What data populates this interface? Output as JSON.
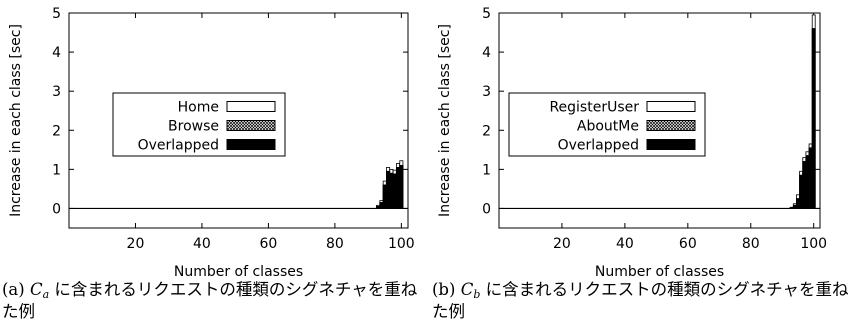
{
  "chart_data": [
    {
      "type": "bar",
      "xlabel": "Number of classes",
      "ylabel": "Increase in each class [sec]",
      "xlim": [
        0,
        102
      ],
      "ylim": [
        -0.5,
        5
      ],
      "xticks": [
        20,
        40,
        60,
        80,
        100
      ],
      "yticks": [
        0,
        1,
        2,
        3,
        4,
        5
      ],
      "legend_position": "center-left",
      "x": [
        93,
        94,
        95,
        96,
        97,
        98,
        99,
        100
      ],
      "series": [
        {
          "name": "Home",
          "style": "open",
          "values": [
            0.08,
            0.2,
            0.7,
            1.05,
            1.0,
            0.98,
            1.15,
            1.22
          ]
        },
        {
          "name": "Browse",
          "style": "crosshatch",
          "values": [
            0.05,
            0.15,
            0.6,
            0.95,
            0.9,
            0.88,
            1.05,
            1.1
          ]
        },
        {
          "name": "Overlapped",
          "style": "solid",
          "values": [
            0.05,
            0.15,
            0.6,
            0.95,
            0.9,
            0.88,
            1.05,
            1.1
          ]
        }
      ],
      "caption": {
        "label": "(a)",
        "symbol": "C",
        "subscript": "a",
        "text": "に含まれるリクエストの種類のシグネチャを重ねた例"
      }
    },
    {
      "type": "bar",
      "xlabel": "Number of classes",
      "ylabel": "Increase in each class [sec]",
      "xlim": [
        0,
        102
      ],
      "ylim": [
        -0.5,
        5
      ],
      "xticks": [
        20,
        40,
        60,
        80,
        100
      ],
      "yticks": [
        0,
        1,
        2,
        3,
        4,
        5
      ],
      "legend_position": "center-left",
      "x": [
        93,
        94,
        95,
        96,
        97,
        98,
        99,
        100
      ],
      "series": [
        {
          "name": "RegisterUser",
          "style": "open",
          "values": [
            0.03,
            0.12,
            0.35,
            0.95,
            1.3,
            1.45,
            1.65,
            4.95
          ]
        },
        {
          "name": "AboutMe",
          "style": "crosshatch",
          "values": [
            0.02,
            0.08,
            0.25,
            0.85,
            1.2,
            1.35,
            1.55,
            4.6
          ]
        },
        {
          "name": "Overlapped",
          "style": "solid",
          "values": [
            0.02,
            0.08,
            0.25,
            0.85,
            1.2,
            1.35,
            1.55,
            4.6
          ]
        }
      ],
      "caption": {
        "label": "(b)",
        "symbol": "C",
        "subscript": "b",
        "text": "に含まれるリクエストの種類のシグネチャを重ねた例"
      }
    }
  ]
}
